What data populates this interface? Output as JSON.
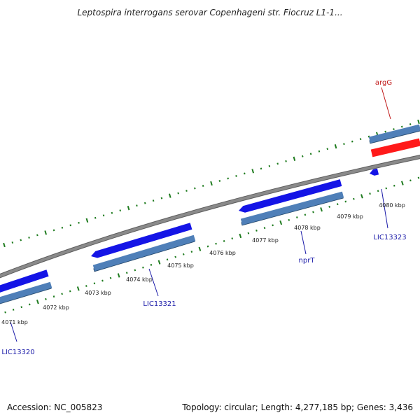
{
  "title": "Leptospira interrogans serovar Copenhageni str. Fiocruz L1-1...",
  "footer": {
    "accession": "Accession: NC_005823",
    "summary": "Topology: circular; Length: 4,277,185 bp; Genes: 3,436"
  },
  "colors": {
    "background": "#ffffff",
    "backbone": "#8a8a8a",
    "tick": "#1e7b1e",
    "gene_forward": "#1414e6",
    "cds": "#4f7fb8",
    "cds_shadow": "#274a6e",
    "gene_highlight": "#ff1a1a",
    "label_blue": "#1a1aa8",
    "label_red": "#c01818"
  },
  "scale_labels": [
    {
      "kbp": 4071,
      "text": "4071 kbp"
    },
    {
      "kbp": 4072,
      "text": "4072 kbp"
    },
    {
      "kbp": 4073,
      "text": "4073 kbp"
    },
    {
      "kbp": 4074,
      "text": "4074 kbp"
    },
    {
      "kbp": 4075,
      "text": "4075 kbp"
    },
    {
      "kbp": 4076,
      "text": "4076 kbp"
    },
    {
      "kbp": 4077,
      "text": "4077 kbp"
    },
    {
      "kbp": 4078,
      "text": "4078 kbp"
    },
    {
      "kbp": 4079,
      "text": "4079 kbp"
    },
    {
      "kbp": 4080,
      "text": "4080 kbp"
    }
  ],
  "gene_labels": [
    {
      "id": "lic13320",
      "text": "LIC13320",
      "color": "label_blue"
    },
    {
      "id": "lic13321",
      "text": "LIC13321",
      "color": "label_blue"
    },
    {
      "id": "nprt",
      "text": "nprT",
      "color": "label_blue"
    },
    {
      "id": "lic13323",
      "text": "LIC13323",
      "color": "label_blue"
    },
    {
      "id": "argg",
      "text": "argG",
      "color": "label_red"
    }
  ]
}
